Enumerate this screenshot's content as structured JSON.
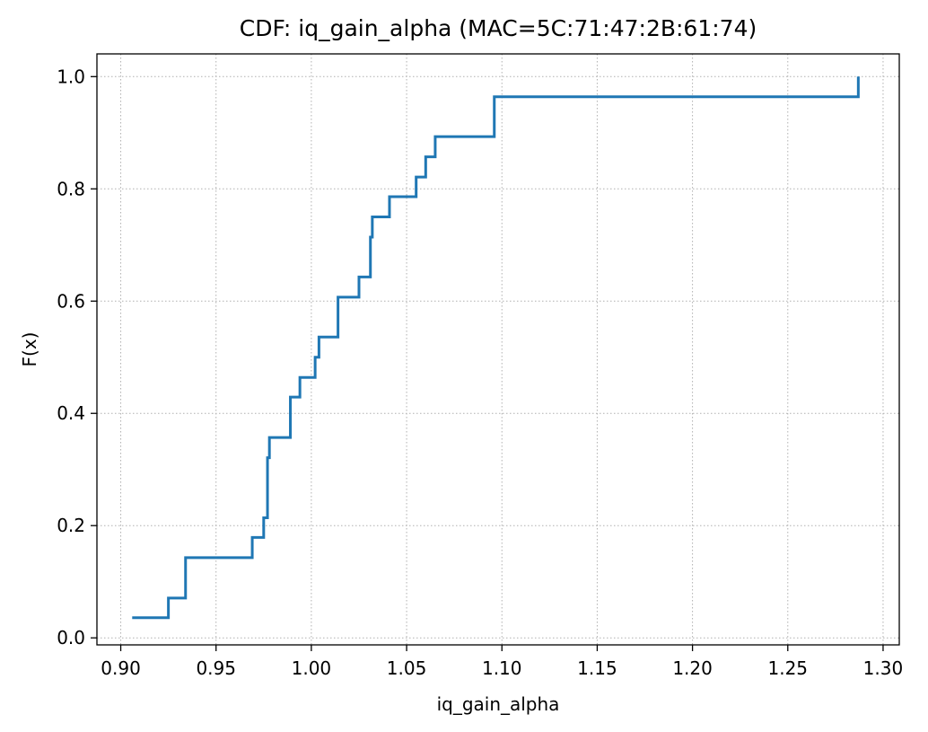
{
  "chart_data": {
    "type": "line",
    "drawstyle": "steps-post",
    "title": "CDF: iq_gain_alpha (MAC=5C:71:47:2B:61:74)",
    "xlabel": "iq_gain_alpha",
    "ylabel": "F(x)",
    "xlim": [
      0.8875,
      1.3085
    ],
    "ylim": [
      -0.0125,
      1.0405
    ],
    "xticks": [
      0.9,
      0.95,
      1.0,
      1.05,
      1.1,
      1.15,
      1.2,
      1.25,
      1.3
    ],
    "xtick_labels": [
      "0.90",
      "0.95",
      "1.00",
      "1.05",
      "1.10",
      "1.15",
      "1.20",
      "1.25",
      "1.30"
    ],
    "yticks": [
      0.0,
      0.2,
      0.4,
      0.6,
      0.8,
      1.0
    ],
    "ytick_labels": [
      "0.0",
      "0.2",
      "0.4",
      "0.6",
      "0.8",
      "1.0"
    ],
    "grid": true,
    "series_color": "#1f77b4",
    "series": [
      {
        "x": [
          0.906,
          0.925,
          0.934,
          0.969,
          0.975,
          0.977,
          0.978,
          0.989,
          0.994,
          1.002,
          1.003,
          1.004,
          1.014,
          1.025,
          1.031,
          1.032,
          1.041,
          1.055,
          1.06,
          1.065,
          1.096,
          1.287
        ],
        "y": [
          0.036,
          0.071,
          0.143,
          0.179,
          0.214,
          0.321,
          0.357,
          0.429,
          0.464,
          0.5,
          0.5,
          0.536,
          0.607,
          0.643,
          0.714,
          0.75,
          0.786,
          0.821,
          0.857,
          0.893,
          0.964,
          1.0
        ]
      }
    ]
  }
}
